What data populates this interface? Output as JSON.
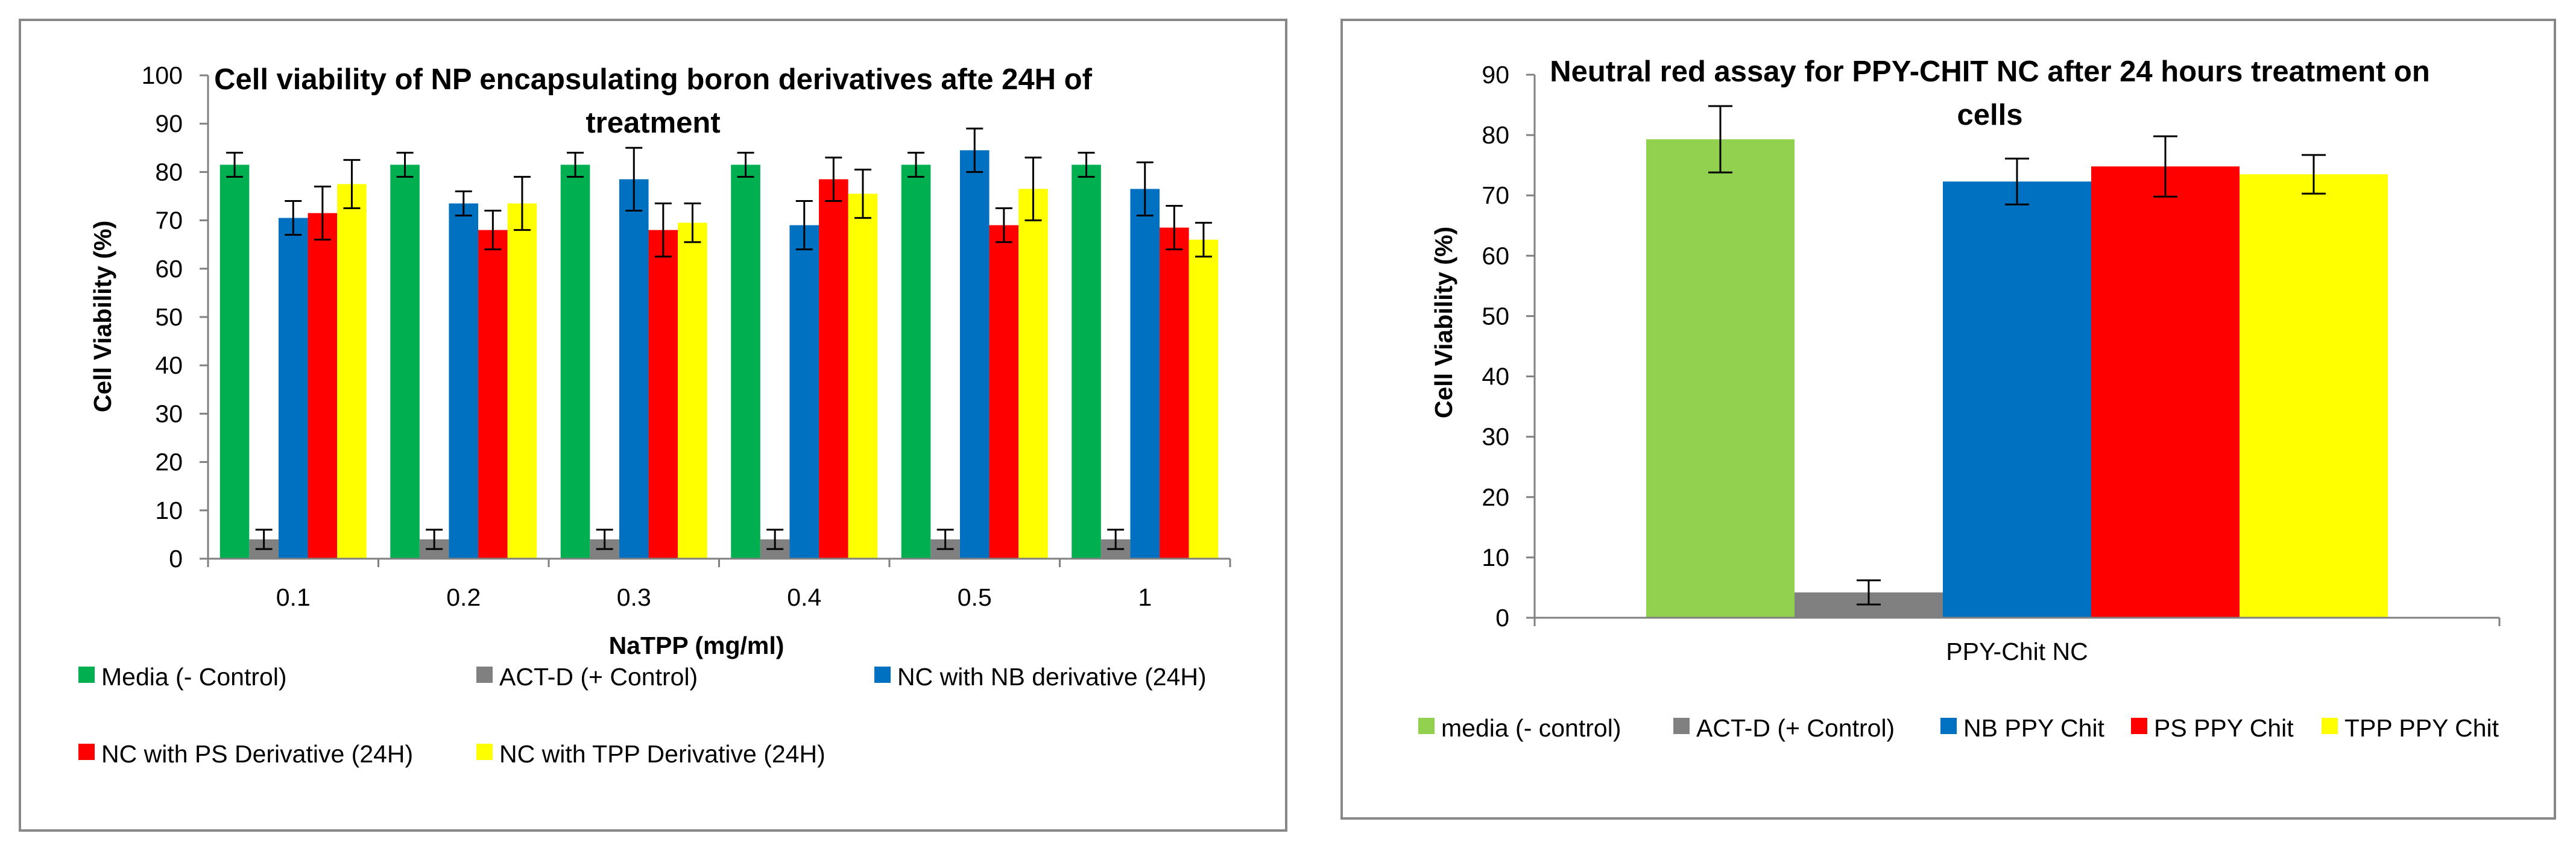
{
  "chart_data": [
    {
      "type": "bar",
      "title_lines": [
        "Cell viability of NP encapsulating boron derivatives afte 24H of",
        "treatment"
      ],
      "xlabel": "NaTPP  (mg/ml)",
      "ylabel": "Cell Viability (%)",
      "ylim": [
        0,
        100
      ],
      "ytick_step": 10,
      "yticks": [
        "0",
        "10",
        "20",
        "30",
        "40",
        "50",
        "60",
        "70",
        "80",
        "90",
        "100"
      ],
      "categories": [
        "0.1",
        "0.2",
        "0.3",
        "0.4",
        "0.5",
        "1"
      ],
      "legend_position": "bottom",
      "series": [
        {
          "name": "Media (- Control)",
          "color": "#00b050",
          "values": [
            81.5,
            81.5,
            81.5,
            81.5,
            81.5,
            81.5
          ],
          "errors": [
            2.5,
            2.5,
            2.5,
            2.5,
            2.5,
            2.5
          ]
        },
        {
          "name": "ACT-D (+ Control)",
          "color": "#808080",
          "values": [
            4,
            4,
            4,
            4,
            4,
            4
          ],
          "errors": [
            2,
            2,
            2,
            2,
            2,
            2
          ]
        },
        {
          "name": "NC with NB derivative (24H)",
          "color": "#0070c0",
          "values": [
            70.5,
            73.5,
            78.5,
            69,
            84.5,
            76.5
          ],
          "errors": [
            3.5,
            2.5,
            6.5,
            5,
            4.5,
            5.5
          ]
        },
        {
          "name": "NC with PS Derivative (24H)",
          "color": "#ff0000",
          "values": [
            71.5,
            68,
            68,
            78.5,
            69,
            68.5
          ],
          "errors": [
            5.5,
            4,
            5.5,
            4.5,
            3.5,
            4.5
          ]
        },
        {
          "name": "NC with TPP Derivative (24H)",
          "color": "#ffff00",
          "values": [
            77.5,
            73.5,
            69.5,
            75.5,
            76.5,
            66
          ],
          "errors": [
            5,
            5.5,
            4,
            5,
            6.5,
            3.5
          ]
        }
      ]
    },
    {
      "type": "bar",
      "title_lines": [
        "Neutral red assay for PPY-CHIT NC after 24 hours treatment on",
        "cells"
      ],
      "xlabel": "",
      "ylabel": "Cell Viability (%)",
      "ylim": [
        0,
        90
      ],
      "ytick_step": 10,
      "yticks": [
        "0",
        "10",
        "20",
        "30",
        "40",
        "50",
        "60",
        "70",
        "80",
        "90"
      ],
      "categories": [
        "PPY-Chit NC"
      ],
      "legend_position": "bottom",
      "series": [
        {
          "name": "media (- control)",
          "color": "#92d050",
          "values": [
            79.3
          ],
          "errors": [
            5.5
          ]
        },
        {
          "name": "ACT-D (+ Control)",
          "color": "#808080",
          "values": [
            4.2
          ],
          "errors": [
            2
          ]
        },
        {
          "name": "NB PPY Chit",
          "color": "#0070c0",
          "values": [
            72.3
          ],
          "errors": [
            3.8
          ]
        },
        {
          "name": "PS PPY Chit",
          "color": "#ff0000",
          "values": [
            74.8
          ],
          "errors": [
            5
          ]
        },
        {
          "name": "TPP PPY Chit",
          "color": "#ffff00",
          "values": [
            73.5
          ],
          "errors": [
            3.2
          ]
        }
      ]
    }
  ]
}
